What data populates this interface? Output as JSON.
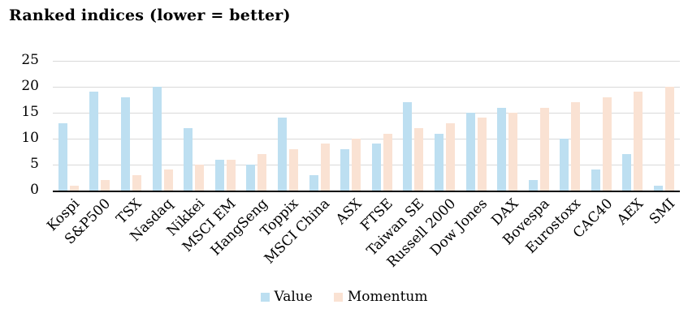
{
  "title": "Ranked indices (lower = better)",
  "colors": {
    "value": "#BDDFF1",
    "momentum": "#FAE2D3",
    "gridline": "#D9D9D9",
    "axis": "#000000",
    "text": "#000000",
    "background": "#FFFFFF"
  },
  "legend": {
    "items": [
      {
        "label": "Value",
        "color": "#BDDFF1"
      },
      {
        "label": "Momentum",
        "color": "#FAE2D3"
      }
    ]
  },
  "chart_data": {
    "type": "bar",
    "title": "Ranked indices (lower = better)",
    "categories": [
      "Kospi",
      "S&P500",
      "TSX",
      "Nasdaq",
      "Nikkei",
      "MSCI EM",
      "HangSeng",
      "Toppix",
      "MSCI China",
      "ASX",
      "FTSE",
      "Taiwan SE",
      "Russell 2000",
      "Dow Jones",
      "DAX",
      "Bovespa",
      "Eurostoxx",
      "CAC40",
      "AEX",
      "SMI"
    ],
    "series": [
      {
        "name": "Value",
        "color": "#BDDFF1",
        "values": [
          13,
          19,
          18,
          20,
          12,
          6,
          5,
          14,
          3,
          8,
          9,
          17,
          11,
          15,
          16,
          2,
          10,
          4,
          7,
          1
        ]
      },
      {
        "name": "Momentum",
        "color": "#FAE2D3",
        "values": [
          1,
          2,
          3,
          4,
          5,
          6,
          7,
          8,
          9,
          10,
          11,
          12,
          13,
          14,
          15,
          16,
          17,
          18,
          19,
          20
        ]
      }
    ],
    "xlabel": "",
    "ylabel": "",
    "ylim": [
      0,
      25
    ],
    "yticks": [
      0,
      5,
      10,
      15,
      20,
      25
    ],
    "grid": true,
    "legend_position": "bottom",
    "x_label_rotation_deg": 45
  }
}
